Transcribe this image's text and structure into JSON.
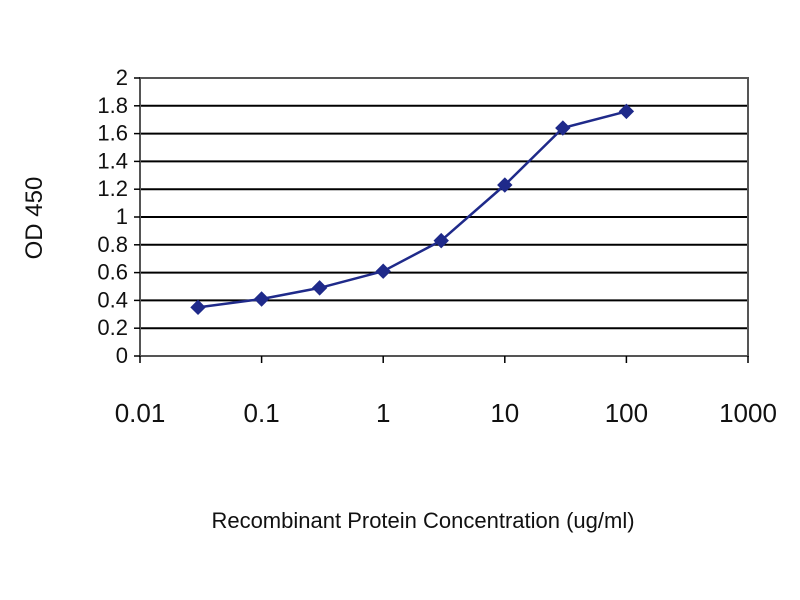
{
  "chart_data": {
    "type": "line",
    "title": "",
    "xlabel": "Recombinant Protein Concentration (ug/ml)",
    "ylabel": "OD 450",
    "x_scale": "log",
    "xlim": [
      0.01,
      1000
    ],
    "ylim": [
      0,
      2
    ],
    "x_ticks": [
      "0.01",
      "0.1",
      "1",
      "10",
      "100",
      "1000"
    ],
    "y_ticks": [
      "0",
      "0.2",
      "0.4",
      "0.6",
      "0.8",
      "1",
      "1.2",
      "1.4",
      "1.6",
      "1.8",
      "2"
    ],
    "grid": true,
    "legend": "none",
    "series": [
      {
        "color": "#1f2a8a",
        "x": [
          0.03,
          0.1,
          0.3,
          1,
          3,
          10,
          30,
          100
        ],
        "y": [
          0.35,
          0.41,
          0.49,
          0.61,
          0.83,
          1.23,
          1.64,
          1.76
        ]
      }
    ]
  }
}
